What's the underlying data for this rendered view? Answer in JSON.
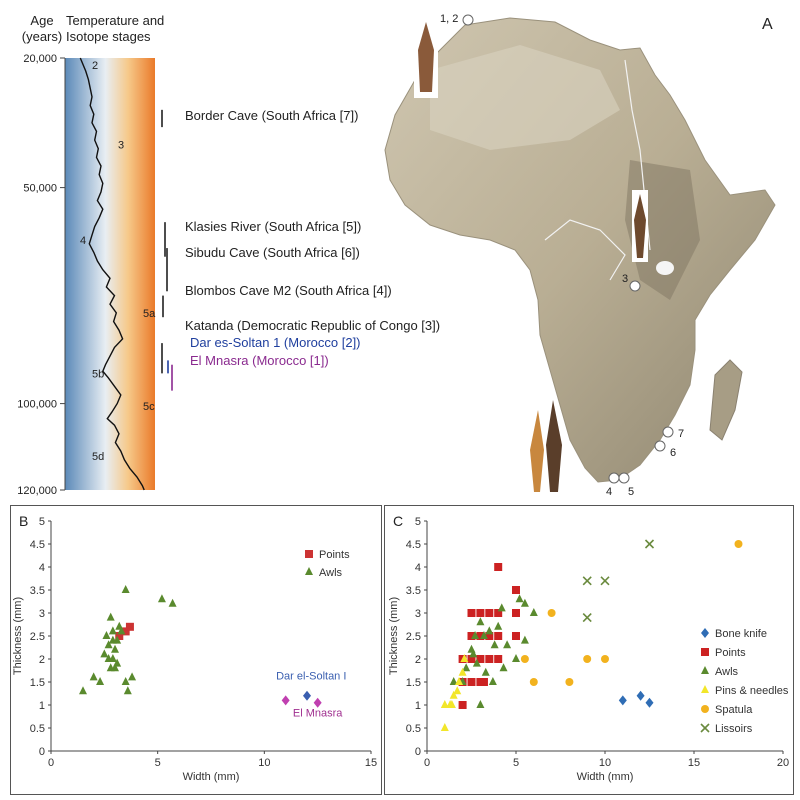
{
  "panel_a": {
    "label": "A",
    "axis_header": {
      "line1": "Age",
      "line2": "(years)"
    },
    "column_header": {
      "line1": "Temperature and",
      "line2": "Isotope stages"
    },
    "age_ticks": [
      {
        "value": 20000,
        "label": "20,000"
      },
      {
        "value": 50000,
        "label": "50,000"
      },
      {
        "value": 100000,
        "label": "100,000"
      },
      {
        "value": 120000,
        "label": "120,000"
      }
    ],
    "age_range": [
      20000,
      120000
    ],
    "isotope_stages": [
      {
        "label": "2",
        "age": 22500
      },
      {
        "label": "3",
        "age": 41000
      },
      {
        "label": "4",
        "age": 63000
      },
      {
        "label": "5a",
        "age": 80000
      },
      {
        "label": "5b",
        "age": 94000
      },
      {
        "label": "5c",
        "age": 101500
      },
      {
        "label": "5d",
        "age": 113000
      }
    ],
    "temperature_curve": [
      [
        20000,
        0.17
      ],
      [
        21500,
        0.2
      ],
      [
        23000,
        0.23
      ],
      [
        25000,
        0.26
      ],
      [
        27000,
        0.28
      ],
      [
        29000,
        0.3
      ],
      [
        31000,
        0.28
      ],
      [
        33000,
        0.32
      ],
      [
        35000,
        0.3
      ],
      [
        37000,
        0.35
      ],
      [
        39000,
        0.33
      ],
      [
        41000,
        0.37
      ],
      [
        43000,
        0.35
      ],
      [
        45000,
        0.4
      ],
      [
        47000,
        0.38
      ],
      [
        49000,
        0.42
      ],
      [
        51000,
        0.4
      ],
      [
        53000,
        0.36
      ],
      [
        55000,
        0.42
      ],
      [
        57000,
        0.38
      ],
      [
        59000,
        0.33
      ],
      [
        61000,
        0.3
      ],
      [
        63000,
        0.27
      ],
      [
        65000,
        0.32
      ],
      [
        67000,
        0.36
      ],
      [
        69000,
        0.42
      ],
      [
        71000,
        0.5
      ],
      [
        73000,
        0.46
      ],
      [
        75000,
        0.55
      ],
      [
        77000,
        0.5
      ],
      [
        79000,
        0.57
      ],
      [
        81000,
        0.54
      ],
      [
        83000,
        0.6
      ],
      [
        85000,
        0.64
      ],
      [
        87000,
        0.55
      ],
      [
        89000,
        0.5
      ],
      [
        91000,
        0.45
      ],
      [
        92500,
        0.42
      ],
      [
        94000,
        0.48
      ],
      [
        96000,
        0.55
      ],
      [
        98000,
        0.62
      ],
      [
        100000,
        0.58
      ],
      [
        102000,
        0.52
      ],
      [
        103500,
        0.47
      ],
      [
        105000,
        0.55
      ],
      [
        107000,
        0.6
      ],
      [
        109000,
        0.56
      ],
      [
        111000,
        0.62
      ],
      [
        113000,
        0.66
      ],
      [
        115000,
        0.72
      ],
      [
        117000,
        0.8
      ],
      [
        119000,
        0.86
      ],
      [
        120000,
        0.88
      ]
    ],
    "sites": [
      {
        "label": "Border Cave (South Africa [7])",
        "color": "#222222",
        "range": [
          32000,
          36000
        ]
      },
      {
        "label": "Klasies River  (South Africa [5])",
        "color": "#222222",
        "range": [
          58000,
          66000
        ]
      },
      {
        "label": "Sibudu Cave (South Africa [6])",
        "color": "#222222",
        "range": [
          64000,
          74000
        ]
      },
      {
        "label": "Blombos Cave M2 (South Africa [4])",
        "color": "#222222",
        "range": [
          75000,
          80000
        ]
      },
      {
        "label": "Katanda (Democratic Republic of Congo [3])",
        "color": "#222222",
        "range": [
          86000,
          93000
        ]
      },
      {
        "label": "Dar es-Soltan 1 (Morocco [2])",
        "color": "#1f3f9e",
        "range": [
          90000,
          93000
        ]
      },
      {
        "label": "El Mnasra (Morocco [1])",
        "color": "#8a2a8f",
        "range": [
          91000,
          97000
        ]
      }
    ],
    "map_site_markers": [
      {
        "label": "1, 2"
      },
      {
        "label": "3"
      },
      {
        "label": "4"
      },
      {
        "label": "5"
      },
      {
        "label": "6"
      },
      {
        "label": "7"
      }
    ],
    "colors": {
      "cold": "#5b89b8",
      "mid": "#e8eef3",
      "warm": "#ea7a2a"
    }
  },
  "chart_data": [
    {
      "id": "B",
      "type": "scatter",
      "label": "B",
      "xlabel": "Width (mm)",
      "ylabel": "Thickness (mm)",
      "xlim": [
        0,
        15
      ],
      "ylim": [
        0,
        5
      ],
      "xticks": [
        0,
        5,
        10,
        15
      ],
      "yticks": [
        0,
        0.5,
        1,
        1.5,
        2,
        2.5,
        3,
        3.5,
        4,
        4.5,
        5
      ],
      "ytick_labels": [
        "0",
        "0.5",
        "1",
        "1.5",
        "2",
        "2.5",
        "3",
        "3.5",
        "4",
        "4.5",
        "5"
      ],
      "legend_position": "top-right",
      "series": [
        {
          "name": "Points",
          "marker": "square",
          "color": "#cc3333",
          "legend": true,
          "points": [
            [
              3.2,
              2.5
            ],
            [
              3.5,
              2.6
            ],
            [
              3.7,
              2.7
            ]
          ]
        },
        {
          "name": "Awls",
          "marker": "triangle",
          "color": "#5a8a2e",
          "legend": true,
          "points": [
            [
              1.5,
              1.3
            ],
            [
              2.0,
              1.6
            ],
            [
              2.3,
              1.5
            ],
            [
              2.5,
              2.1
            ],
            [
              2.7,
              2.3
            ],
            [
              2.8,
              2.9
            ],
            [
              2.6,
              2.5
            ],
            [
              2.9,
              2.6
            ],
            [
              3.0,
              1.8
            ],
            [
              2.8,
              1.8
            ],
            [
              2.9,
              2.0
            ],
            [
              3.1,
              2.4
            ],
            [
              3.3,
              2.6
            ],
            [
              3.0,
              2.2
            ],
            [
              3.5,
              1.5
            ],
            [
              3.8,
              1.6
            ],
            [
              3.6,
              1.3
            ],
            [
              3.5,
              3.5
            ],
            [
              5.2,
              3.3
            ],
            [
              5.7,
              3.2
            ],
            [
              2.9,
              2.4
            ],
            [
              3.2,
              2.7
            ],
            [
              2.7,
              2.0
            ],
            [
              3.1,
              1.9
            ]
          ]
        },
        {
          "name": "Dar el-Soltan I",
          "marker": "diamond",
          "color": "#3a5fb0",
          "legend": false,
          "points": [
            [
              12.0,
              1.2
            ]
          ]
        },
        {
          "name": "El Mnasra",
          "marker": "diamond",
          "color": "#c040b0",
          "legend": false,
          "points": [
            [
              11.0,
              1.1
            ],
            [
              12.5,
              1.05
            ]
          ]
        }
      ],
      "annotations": [
        {
          "text": "Dar el-Soltan I",
          "color": "#3a5fb0",
          "x": 12.2,
          "y": 1.55
        },
        {
          "text": "El Mnasra",
          "color": "#a03090",
          "x": 12.5,
          "y": 0.75
        }
      ]
    },
    {
      "id": "C",
      "type": "scatter",
      "label": "C",
      "xlabel": "Width (mm)",
      "ylabel": "Thickness (mm)",
      "xlim": [
        0,
        20
      ],
      "ylim": [
        0,
        5
      ],
      "xticks": [
        0,
        5,
        10,
        15,
        20
      ],
      "yticks": [
        0,
        0.5,
        1,
        1.5,
        2,
        2.5,
        3,
        3.5,
        4,
        4.5,
        5
      ],
      "ytick_labels": [
        "0",
        "0.5",
        "1",
        "1.5",
        "2",
        "2.5",
        "3",
        "3.5",
        "4",
        "4.5",
        "5"
      ],
      "legend_position": "right",
      "series": [
        {
          "name": "Bone knife",
          "marker": "diamond",
          "color": "#2f6db5",
          "legend": true,
          "points": [
            [
              11.0,
              1.1
            ],
            [
              12.0,
              1.2
            ],
            [
              12.5,
              1.05
            ]
          ]
        },
        {
          "name": "Points",
          "marker": "square",
          "color": "#cc2222",
          "legend": true,
          "points": [
            [
              2,
              1
            ],
            [
              2,
              1.5
            ],
            [
              2,
              2
            ],
            [
              2.5,
              1.5
            ],
            [
              2.5,
              2
            ],
            [
              2.5,
              2.5
            ],
            [
              3,
              1.5
            ],
            [
              3,
              2
            ],
            [
              3,
              2.5
            ],
            [
              3,
              3
            ],
            [
              3.5,
              2
            ],
            [
              3.5,
              2.5
            ],
            [
              3.5,
              3
            ],
            [
              4,
              2
            ],
            [
              4,
              2.5
            ],
            [
              4,
              3
            ],
            [
              4,
              4
            ],
            [
              5,
              2.5
            ],
            [
              5,
              3
            ],
            [
              5,
              3.5
            ],
            [
              2.5,
              3
            ],
            [
              3.2,
              1.5
            ]
          ]
        },
        {
          "name": "Awls",
          "marker": "triangle",
          "color": "#5a8a2e",
          "legend": true,
          "points": [
            [
              1.5,
              1.5
            ],
            [
              2,
              1.5
            ],
            [
              2.2,
              1.8
            ],
            [
              2.5,
              2.2
            ],
            [
              2.7,
              2.5
            ],
            [
              2.8,
              1.9
            ],
            [
              3,
              2.8
            ],
            [
              3.2,
              2.5
            ],
            [
              3.3,
              1.7
            ],
            [
              3.5,
              2.6
            ],
            [
              3.7,
              1.5
            ],
            [
              3,
              1.0
            ],
            [
              4,
              2.7
            ],
            [
              4.2,
              3.1
            ],
            [
              4.5,
              2.3
            ],
            [
              5,
              2.0
            ],
            [
              5.5,
              2.4
            ],
            [
              5.2,
              3.3
            ],
            [
              5.5,
              3.2
            ],
            [
              6,
              3.0
            ],
            [
              4.3,
              1.8
            ],
            [
              3.8,
              2.3
            ],
            [
              2.6,
              2.1
            ]
          ]
        },
        {
          "name": "Pins & needles",
          "marker": "triangle",
          "color": "#f2e62a",
          "legend": true,
          "points": [
            [
              1.0,
              0.5
            ],
            [
              1.0,
              1.0
            ],
            [
              1.3,
              1.0
            ],
            [
              1.5,
              1.2
            ],
            [
              1.8,
              1.5
            ],
            [
              2.0,
              1.7
            ],
            [
              2.1,
              2.0
            ],
            [
              1.7,
              1.3
            ],
            [
              1.4,
              1.0
            ]
          ]
        },
        {
          "name": "Spatula",
          "marker": "circle",
          "color": "#f2b21e",
          "legend": true,
          "points": [
            [
              5.5,
              2.0
            ],
            [
              6,
              1.5
            ],
            [
              7,
              3.0
            ],
            [
              8,
              1.5
            ],
            [
              9,
              2.0
            ],
            [
              10,
              2.0
            ],
            [
              17.5,
              4.5
            ]
          ]
        },
        {
          "name": "Lissoirs",
          "marker": "cross",
          "color": "#6a8a3e",
          "legend": true,
          "points": [
            [
              9,
              3.7
            ],
            [
              10,
              3.7
            ],
            [
              9,
              2.9
            ],
            [
              12.5,
              4.5
            ]
          ]
        }
      ]
    }
  ]
}
